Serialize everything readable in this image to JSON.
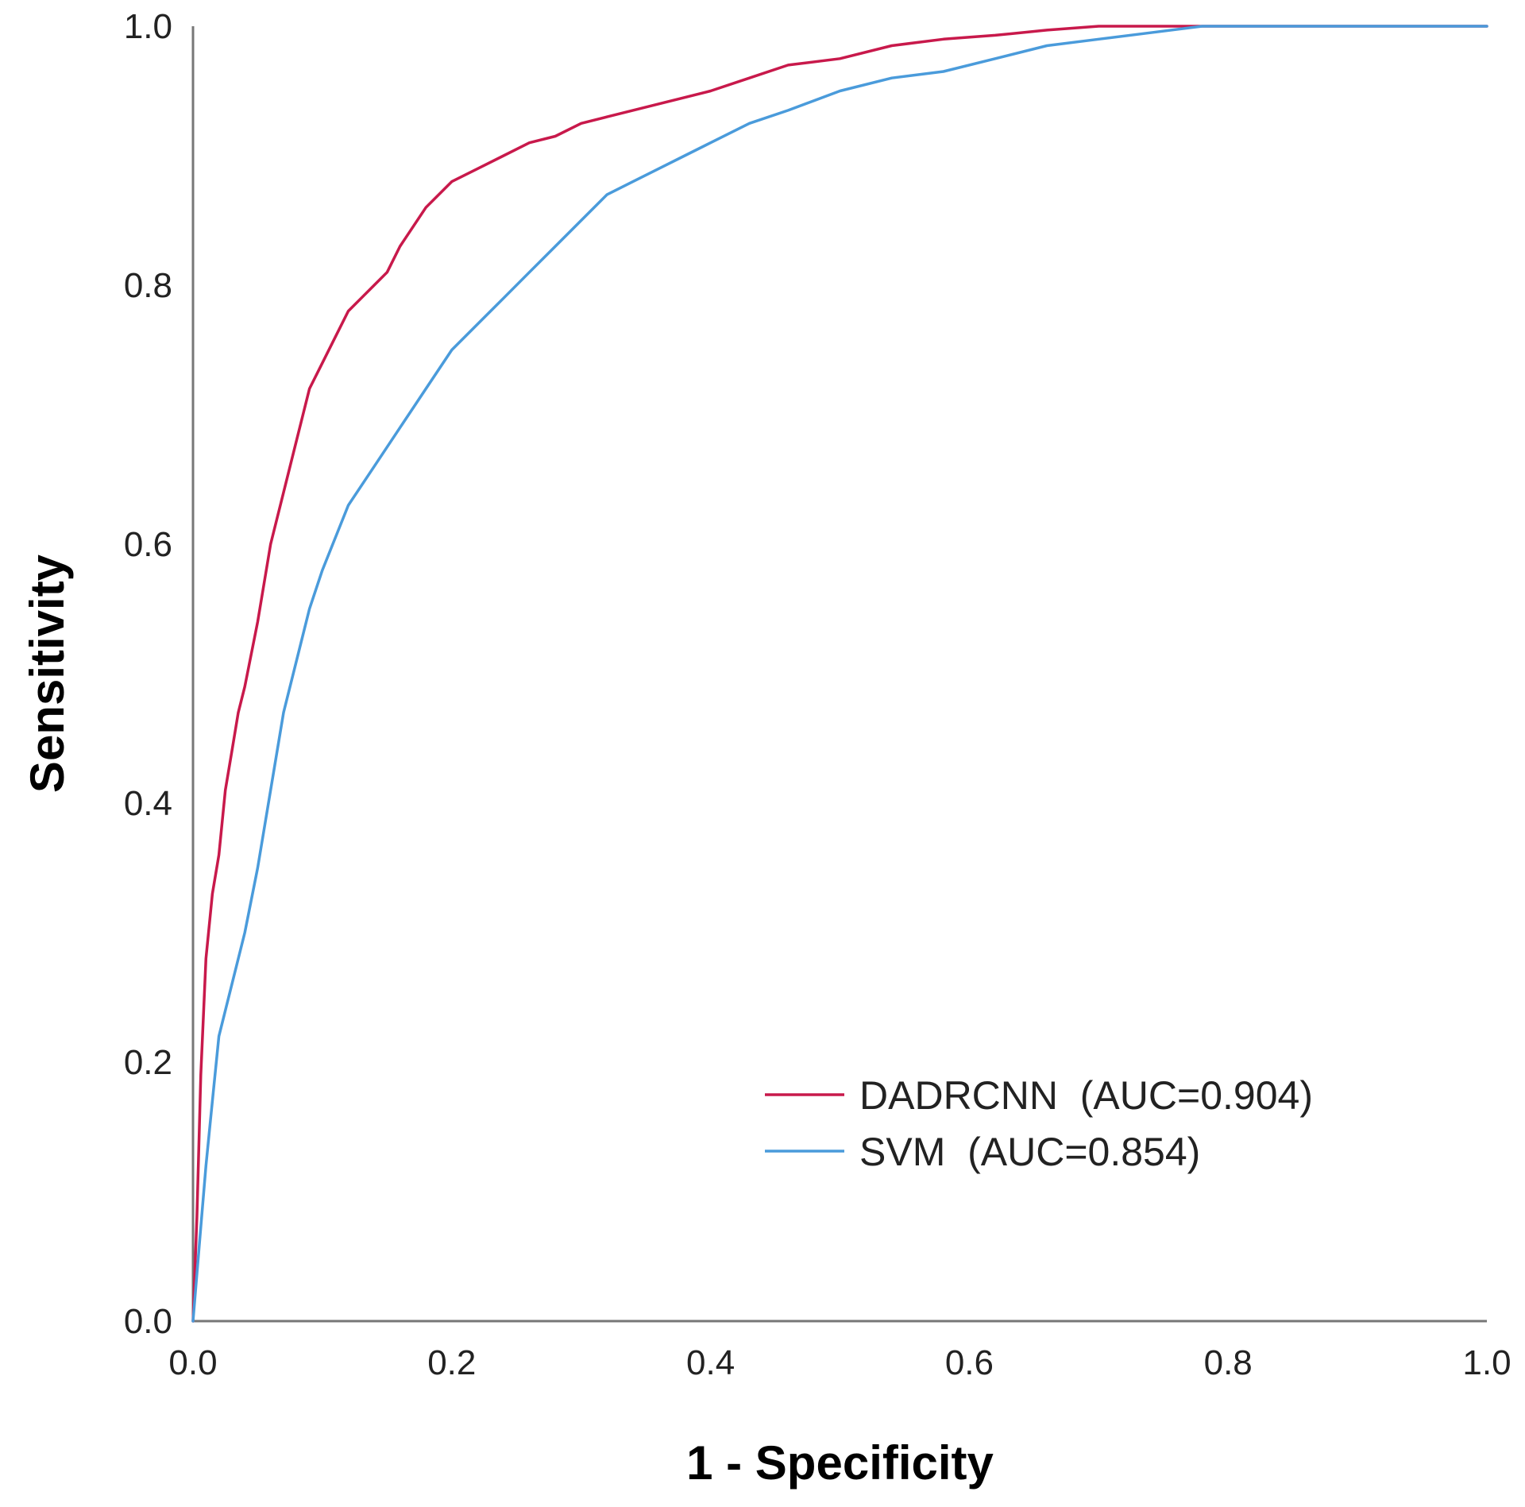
{
  "chart_data": {
    "type": "line",
    "title": "",
    "xlabel": "1 - Specificity",
    "ylabel": "Sensitivity",
    "xlim": [
      0.0,
      1.0
    ],
    "ylim": [
      0.0,
      1.0
    ],
    "x_ticks": [
      "0.0",
      "0.2",
      "0.4",
      "0.6",
      "0.8",
      "1.0"
    ],
    "y_ticks": [
      "0.0",
      "0.2",
      "0.4",
      "0.6",
      "0.8",
      "1.0"
    ],
    "grid": false,
    "legend_position": "bottom-right",
    "series": [
      {
        "name": "DADRCNN",
        "label": "DADRCNN  (AUC=0.904)",
        "auc": 0.904,
        "color": "#c8194b",
        "x": [
          0.0,
          0.003,
          0.006,
          0.01,
          0.015,
          0.02,
          0.025,
          0.03,
          0.035,
          0.04,
          0.05,
          0.06,
          0.07,
          0.08,
          0.09,
          0.1,
          0.11,
          0.12,
          0.13,
          0.14,
          0.15,
          0.16,
          0.18,
          0.2,
          0.22,
          0.24,
          0.26,
          0.28,
          0.3,
          0.32,
          0.34,
          0.36,
          0.38,
          0.4,
          0.43,
          0.46,
          0.5,
          0.54,
          0.58,
          0.62,
          0.66,
          0.7,
          0.75,
          0.8,
          0.85,
          0.9,
          1.0
        ],
        "y": [
          0.0,
          0.08,
          0.19,
          0.28,
          0.33,
          0.36,
          0.41,
          0.44,
          0.47,
          0.49,
          0.54,
          0.6,
          0.64,
          0.68,
          0.72,
          0.74,
          0.76,
          0.78,
          0.79,
          0.8,
          0.81,
          0.83,
          0.86,
          0.88,
          0.89,
          0.9,
          0.91,
          0.915,
          0.925,
          0.93,
          0.935,
          0.94,
          0.945,
          0.95,
          0.96,
          0.97,
          0.975,
          0.985,
          0.99,
          0.993,
          0.997,
          1.0,
          1.0,
          1.0,
          1.0,
          1.0,
          1.0
        ]
      },
      {
        "name": "SVM",
        "label": "SVM  (AUC=0.854)",
        "auc": 0.854,
        "color": "#4a9bdb",
        "x": [
          0.0,
          0.005,
          0.01,
          0.015,
          0.02,
          0.03,
          0.04,
          0.05,
          0.06,
          0.07,
          0.08,
          0.09,
          0.1,
          0.12,
          0.14,
          0.16,
          0.18,
          0.2,
          0.22,
          0.24,
          0.26,
          0.28,
          0.3,
          0.32,
          0.34,
          0.36,
          0.38,
          0.4,
          0.43,
          0.46,
          0.5,
          0.54,
          0.58,
          0.62,
          0.66,
          0.7,
          0.74,
          0.78,
          0.82,
          0.86,
          0.9,
          1.0
        ],
        "y": [
          0.0,
          0.06,
          0.12,
          0.17,
          0.22,
          0.26,
          0.3,
          0.35,
          0.41,
          0.47,
          0.51,
          0.55,
          0.58,
          0.63,
          0.66,
          0.69,
          0.72,
          0.75,
          0.77,
          0.79,
          0.81,
          0.83,
          0.85,
          0.87,
          0.88,
          0.89,
          0.9,
          0.91,
          0.925,
          0.935,
          0.95,
          0.96,
          0.965,
          0.975,
          0.985,
          0.99,
          0.995,
          1.0,
          1.0,
          1.0,
          1.0,
          1.0
        ]
      }
    ]
  }
}
